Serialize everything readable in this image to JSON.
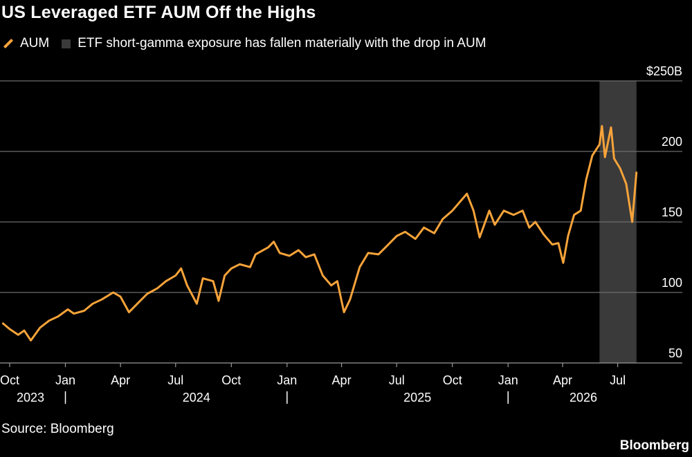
{
  "title": "US Leveraged ETF AUM Off the Highs",
  "legend": {
    "aum": "AUM",
    "shade": "ETF short-gamma exposure has fallen materially with the drop in AUM"
  },
  "source": "Source: Bloomberg",
  "brand": "Bloomberg",
  "colors": {
    "line": "#f7a33a",
    "shade": "#3a3a3a",
    "grid": "#6e6e6e",
    "background": "#000000"
  },
  "chart_data": {
    "type": "line",
    "title": "US Leveraged ETF AUM Off the Highs",
    "series": [
      {
        "name": "AUM",
        "points": [
          [
            "2023-09-20",
            78
          ],
          [
            "2023-10-01",
            74
          ],
          [
            "2023-10-15",
            70
          ],
          [
            "2023-10-25",
            73
          ],
          [
            "2023-11-05",
            66
          ],
          [
            "2023-11-20",
            75
          ],
          [
            "2023-12-05",
            80
          ],
          [
            "2023-12-20",
            83
          ],
          [
            "2024-01-05",
            88
          ],
          [
            "2024-01-15",
            85
          ],
          [
            "2024-02-01",
            87
          ],
          [
            "2024-02-15",
            92
          ],
          [
            "2024-03-01",
            95
          ],
          [
            "2024-03-20",
            100
          ],
          [
            "2024-04-01",
            97
          ],
          [
            "2024-04-15",
            86
          ],
          [
            "2024-05-01",
            93
          ],
          [
            "2024-05-15",
            99
          ],
          [
            "2024-06-01",
            103
          ],
          [
            "2024-06-15",
            108
          ],
          [
            "2024-07-01",
            112
          ],
          [
            "2024-07-10",
            117
          ],
          [
            "2024-07-20",
            105
          ],
          [
            "2024-08-05",
            92
          ],
          [
            "2024-08-15",
            110
          ],
          [
            "2024-09-01",
            108
          ],
          [
            "2024-09-10",
            94
          ],
          [
            "2024-09-20",
            112
          ],
          [
            "2024-10-01",
            117
          ],
          [
            "2024-10-15",
            120
          ],
          [
            "2024-11-01",
            118
          ],
          [
            "2024-11-10",
            127
          ],
          [
            "2024-12-01",
            132
          ],
          [
            "2024-12-10",
            136
          ],
          [
            "2024-12-20",
            128
          ],
          [
            "2025-01-05",
            126
          ],
          [
            "2025-01-20",
            130
          ],
          [
            "2025-02-01",
            125
          ],
          [
            "2025-02-15",
            127
          ],
          [
            "2025-03-01",
            112
          ],
          [
            "2025-03-15",
            105
          ],
          [
            "2025-03-25",
            108
          ],
          [
            "2025-04-05",
            86
          ],
          [
            "2025-04-15",
            95
          ],
          [
            "2025-05-01",
            118
          ],
          [
            "2025-05-15",
            128
          ],
          [
            "2025-06-01",
            127
          ],
          [
            "2025-06-15",
            133
          ],
          [
            "2025-07-01",
            140
          ],
          [
            "2025-07-15",
            143
          ],
          [
            "2025-08-01",
            138
          ],
          [
            "2025-08-15",
            146
          ],
          [
            "2025-09-01",
            142
          ],
          [
            "2025-09-15",
            152
          ],
          [
            "2025-10-01",
            158
          ],
          [
            "2025-10-15",
            165
          ],
          [
            "2025-10-25",
            170
          ],
          [
            "2025-11-05",
            158
          ],
          [
            "2025-11-15",
            139
          ],
          [
            "2025-12-01",
            158
          ],
          [
            "2025-12-10",
            148
          ],
          [
            "2025-12-25",
            158
          ],
          [
            "2026-01-10",
            155
          ],
          [
            "2026-01-25",
            158
          ],
          [
            "2026-02-05",
            146
          ],
          [
            "2026-02-15",
            150
          ],
          [
            "2026-03-01",
            141
          ],
          [
            "2026-03-15",
            134
          ],
          [
            "2026-03-25",
            135
          ],
          [
            "2026-04-02",
            121
          ],
          [
            "2026-04-10",
            140
          ],
          [
            "2026-04-20",
            155
          ],
          [
            "2026-05-01",
            158
          ],
          [
            "2026-05-10",
            180
          ],
          [
            "2026-05-20",
            197
          ],
          [
            "2026-06-01",
            205
          ],
          [
            "2026-06-05",
            218
          ],
          [
            "2026-06-10",
            196
          ],
          [
            "2026-06-20",
            217
          ],
          [
            "2026-06-25",
            195
          ],
          [
            "2026-07-05",
            188
          ],
          [
            "2026-07-15",
            177
          ],
          [
            "2026-07-25",
            150
          ],
          [
            "2026-08-01",
            185
          ]
        ]
      }
    ],
    "shaded_region": {
      "label": "ETF short-gamma exposure has fallen materially with the drop in AUM",
      "x": [
        "2026-06-01",
        "2026-08-01"
      ]
    },
    "ylim": [
      50,
      250
    ],
    "y_ticks": [
      50,
      100,
      150,
      200,
      250
    ],
    "y_tick_labels": [
      "50",
      "100",
      "150",
      "200",
      "$250B"
    ],
    "x_range": [
      "2023-09-15",
      "2026-08-15"
    ],
    "x_ticks": [
      {
        "date": "2023-10-01",
        "label": "Oct"
      },
      {
        "date": "2024-01-01",
        "label": "Jan"
      },
      {
        "date": "2024-04-01",
        "label": "Apr"
      },
      {
        "date": "2024-07-01",
        "label": "Jul"
      },
      {
        "date": "2024-10-01",
        "label": "Oct"
      },
      {
        "date": "2025-01-01",
        "label": "Jan"
      },
      {
        "date": "2025-04-01",
        "label": "Apr"
      },
      {
        "date": "2025-07-01",
        "label": "Jul"
      },
      {
        "date": "2025-10-01",
        "label": "Oct"
      },
      {
        "date": "2026-01-01",
        "label": "Jan"
      },
      {
        "date": "2026-04-01",
        "label": "Apr"
      },
      {
        "date": "2026-07-01",
        "label": "Jul"
      }
    ],
    "year_labels": [
      {
        "date": "2023-10-01",
        "label": "2023"
      },
      {
        "date": "2024-07-01",
        "label": "2024"
      },
      {
        "date": "2025-07-01",
        "label": "2025"
      },
      {
        "date": "2026-04-01",
        "label": "2026"
      }
    ],
    "year_separators": [
      "2024-01-01",
      "2025-01-01",
      "2026-01-01"
    ],
    "grid": true,
    "legend_position": "top-left"
  }
}
